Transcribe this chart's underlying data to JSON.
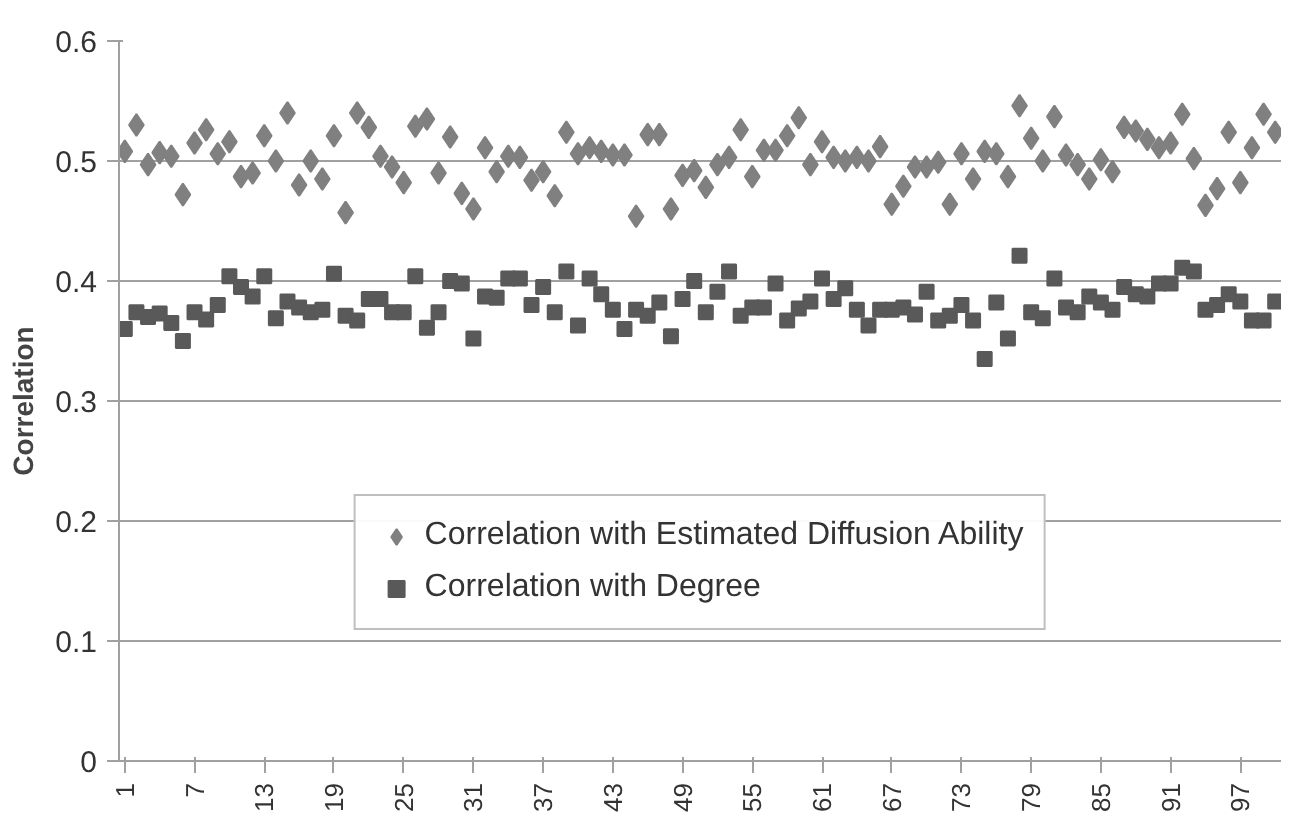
{
  "chart_data": {
    "type": "scatter",
    "ylabel": "Correlation",
    "categories": [
      "1",
      null,
      null,
      null,
      null,
      null,
      "7",
      null,
      null,
      null,
      null,
      null,
      "13",
      null,
      null,
      null,
      null,
      null,
      "19",
      null,
      null,
      null,
      null,
      null,
      "25",
      null,
      null,
      null,
      null,
      null,
      "31",
      null,
      null,
      null,
      null,
      null,
      "37",
      null,
      null,
      null,
      null,
      null,
      "43",
      null,
      null,
      null,
      null,
      null,
      "49",
      null,
      null,
      null,
      null,
      null,
      "55",
      null,
      null,
      null,
      null,
      null,
      "61",
      null,
      null,
      null,
      null,
      null,
      "67",
      null,
      null,
      null,
      null,
      null,
      "73",
      null,
      null,
      null,
      null,
      null,
      "79",
      null,
      null,
      null,
      null,
      null,
      "85",
      null,
      null,
      null,
      null,
      null,
      "91",
      null,
      null,
      null,
      null,
      null,
      "97",
      null,
      null,
      null
    ],
    "series": [
      {
        "name": "Correlation with Estimated Diffusion Ability",
        "color": "#808080",
        "marker": "diamond",
        "values": [
          0.508,
          0.53,
          0.497,
          0.507,
          0.504,
          0.472,
          0.515,
          0.526,
          0.506,
          0.516,
          0.487,
          0.49,
          0.521,
          0.5,
          0.54,
          0.48,
          0.5,
          0.485,
          0.521,
          0.457,
          0.54,
          0.528,
          0.504,
          0.495,
          0.482,
          0.529,
          0.535,
          0.49,
          0.52,
          0.473,
          0.46,
          0.511,
          0.491,
          0.504,
          0.503,
          0.484,
          0.491,
          0.471,
          0.524,
          0.506,
          0.511,
          0.508,
          0.505,
          0.505,
          0.454,
          0.522,
          0.522,
          0.46,
          0.488,
          0.492,
          0.478,
          0.497,
          0.503,
          0.526,
          0.487,
          0.509,
          0.509,
          0.521,
          0.536,
          0.497,
          0.516,
          0.503,
          0.5,
          0.503,
          0.5,
          0.512,
          0.464,
          0.479,
          0.495,
          0.495,
          0.499,
          0.464,
          0.506,
          0.485,
          0.508,
          0.506,
          0.487,
          0.546,
          0.519,
          0.5,
          0.537,
          0.505,
          0.497,
          0.485,
          0.501,
          0.491,
          0.528,
          0.525,
          0.518,
          0.511,
          0.515,
          0.539,
          0.502,
          0.463,
          0.477,
          0.524,
          0.482,
          0.511,
          0.539,
          0.524
        ]
      },
      {
        "name": "Correlation with Degree",
        "color": "#595959",
        "marker": "square",
        "values": [
          0.36,
          0.374,
          0.37,
          0.373,
          0.365,
          0.35,
          0.374,
          0.368,
          0.38,
          0.404,
          0.395,
          0.387,
          0.404,
          0.369,
          0.383,
          0.378,
          0.374,
          0.376,
          0.406,
          0.371,
          0.367,
          0.385,
          0.385,
          0.374,
          0.374,
          0.404,
          0.361,
          0.374,
          0.4,
          0.398,
          0.352,
          0.387,
          0.386,
          0.402,
          0.402,
          0.38,
          0.395,
          0.374,
          0.408,
          0.363,
          0.402,
          0.389,
          0.376,
          0.36,
          0.376,
          0.371,
          0.382,
          0.354,
          0.385,
          0.4,
          0.374,
          0.391,
          0.408,
          0.371,
          0.378,
          0.378,
          0.398,
          0.367,
          0.377,
          0.383,
          0.402,
          0.385,
          0.394,
          0.376,
          0.363,
          0.376,
          0.376,
          0.378,
          0.372,
          0.391,
          0.367,
          0.371,
          0.38,
          0.367,
          0.335,
          0.382,
          0.352,
          0.421,
          0.374,
          0.369,
          0.402,
          0.378,
          0.374,
          0.387,
          0.382,
          0.376,
          0.395,
          0.389,
          0.387,
          0.398,
          0.398,
          0.411,
          0.408,
          0.376,
          0.38,
          0.389,
          0.383,
          0.367,
          0.367,
          0.383
        ]
      }
    ],
    "ylim": [
      0,
      0.6
    ],
    "yticks": [
      0,
      0.1,
      0.2,
      0.3,
      0.4,
      0.5,
      0.6
    ],
    "grid": "y",
    "legend": "bottom"
  }
}
